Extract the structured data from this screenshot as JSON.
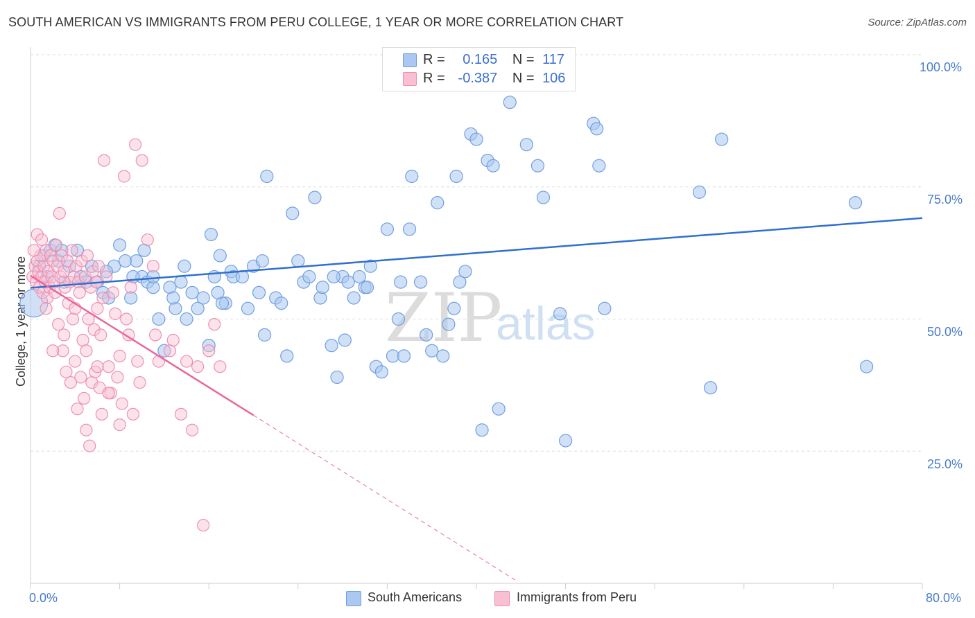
{
  "header": {
    "title": "SOUTH AMERICAN VS IMMIGRANTS FROM PERU COLLEGE, 1 YEAR OR MORE CORRELATION CHART",
    "source": "Source: ZipAtlas.com"
  },
  "colors": {
    "blue_fill": "#aac8f0",
    "blue_stroke": "#6f9fe0",
    "blue_line": "#2f6fd0",
    "pink_fill": "#f8c0d2",
    "pink_stroke": "#ee8fb0",
    "pink_line": "#e8679a",
    "tick_color": "#4a7cc9"
  },
  "legend": {
    "r_label": "R =",
    "n_label": "N =",
    "blue_r": "0.165",
    "blue_n": "117",
    "pink_r": "-0.387",
    "pink_n": "106"
  },
  "chart_data": {
    "type": "scatter",
    "title": "SOUTH AMERICAN VS IMMIGRANTS FROM PERU COLLEGE, 1 YEAR OR MORE CORRELATION CHART",
    "ylabel": "College, 1 year or more",
    "xlim": [
      0,
      80
    ],
    "ylim": [
      0,
      105
    ],
    "x_tick_labels": [
      "0.0%",
      "80.0%"
    ],
    "y_tick_labels": [
      "100.0%",
      "75.0%",
      "50.0%",
      "25.0%"
    ],
    "y_ticks": [
      100,
      75,
      50,
      25
    ],
    "watermark": "ZIPatlas",
    "series": [
      {
        "name": "South Americans",
        "r": 0.165,
        "n": 117,
        "trend": {
          "x": [
            0,
            80
          ],
          "y": [
            55.9,
            69.1
          ]
        },
        "points": [
          [
            0.3,
            53
          ],
          [
            1.2,
            62
          ],
          [
            1.8,
            63
          ],
          [
            2.5,
            61
          ],
          [
            2.2,
            64
          ],
          [
            3,
            57
          ],
          [
            3.5,
            60
          ],
          [
            2.8,
            63
          ],
          [
            4.2,
            63
          ],
          [
            4.5,
            58
          ],
          [
            5,
            57
          ],
          [
            5.5,
            60
          ],
          [
            6,
            57
          ],
          [
            6.5,
            55
          ],
          [
            7,
            54
          ],
          [
            7.5,
            60
          ],
          [
            8,
            64
          ],
          [
            8.5,
            61
          ],
          [
            9,
            54
          ],
          [
            9.5,
            61
          ],
          [
            10,
            58
          ],
          [
            10.5,
            57
          ],
          [
            10.2,
            63
          ],
          [
            11,
            56
          ],
          [
            11.5,
            50
          ],
          [
            11,
            58
          ],
          [
            12,
            44
          ],
          [
            12.5,
            56
          ],
          [
            13,
            52
          ],
          [
            13.5,
            57
          ],
          [
            14,
            50
          ],
          [
            14.5,
            55
          ],
          [
            15,
            52
          ],
          [
            15.5,
            54
          ],
          [
            16,
            45
          ],
          [
            16.2,
            66
          ],
          [
            16.5,
            58
          ],
          [
            17,
            62
          ],
          [
            17.5,
            53
          ],
          [
            17.2,
            53
          ],
          [
            18,
            59
          ],
          [
            18.2,
            58
          ],
          [
            19,
            58
          ],
          [
            19.5,
            52
          ],
          [
            20,
            60
          ],
          [
            20.5,
            55
          ],
          [
            21,
            47
          ],
          [
            21.2,
            77
          ],
          [
            22,
            54
          ],
          [
            22.5,
            53
          ],
          [
            23,
            43
          ],
          [
            23.5,
            70
          ],
          [
            24,
            61
          ],
          [
            24.5,
            57
          ],
          [
            25,
            58
          ],
          [
            25.5,
            73
          ],
          [
            26,
            54
          ],
          [
            26.2,
            56
          ],
          [
            27,
            45
          ],
          [
            27.5,
            39
          ],
          [
            28,
            58
          ],
          [
            28.2,
            46
          ],
          [
            28.5,
            57
          ],
          [
            29,
            54
          ],
          [
            29.5,
            58
          ],
          [
            30,
            56
          ],
          [
            30.5,
            60
          ],
          [
            31,
            41
          ],
          [
            31.5,
            40
          ],
          [
            32,
            67
          ],
          [
            32.5,
            43
          ],
          [
            33,
            50
          ],
          [
            33.5,
            43
          ],
          [
            34,
            67
          ],
          [
            34.2,
            77
          ],
          [
            35,
            57
          ],
          [
            35.5,
            47
          ],
          [
            36,
            44
          ],
          [
            36.5,
            72
          ],
          [
            37,
            43
          ],
          [
            37.5,
            49
          ],
          [
            38,
            52
          ],
          [
            38.2,
            77
          ],
          [
            38.5,
            57
          ],
          [
            39,
            59
          ],
          [
            39.5,
            85
          ],
          [
            40,
            84
          ],
          [
            40.5,
            29
          ],
          [
            41,
            80
          ],
          [
            41.5,
            79
          ],
          [
            42,
            33
          ],
          [
            43,
            91
          ],
          [
            44.5,
            83
          ],
          [
            45.5,
            79
          ],
          [
            46,
            73
          ],
          [
            47.5,
            51
          ],
          [
            48,
            27
          ],
          [
            50.5,
            87
          ],
          [
            50.8,
            86
          ],
          [
            51,
            79
          ],
          [
            51.5,
            52
          ],
          [
            60,
            74
          ],
          [
            61,
            37
          ],
          [
            62,
            84
          ],
          [
            74,
            72
          ],
          [
            75,
            41
          ],
          [
            0.8,
            60
          ],
          [
            1.5,
            58
          ],
          [
            6.8,
            59
          ],
          [
            9.2,
            58
          ],
          [
            13.8,
            60
          ],
          [
            20.8,
            61
          ],
          [
            33.2,
            57
          ],
          [
            30.2,
            56
          ],
          [
            27.2,
            58
          ],
          [
            16.8,
            55
          ],
          [
            12.8,
            54
          ]
        ]
      },
      {
        "name": "Immigrants from Peru",
        "r": -0.387,
        "n": 106,
        "trend": {
          "x": [
            0,
            20
          ],
          "y": [
            58.2,
            31.8
          ]
        },
        "trend_dashed": {
          "x": [
            20,
            43.5
          ],
          "y": [
            31.8,
            0.6
          ]
        },
        "points": [
          [
            0.2,
            58
          ],
          [
            0.4,
            60
          ],
          [
            0.5,
            57
          ],
          [
            0.6,
            61
          ],
          [
            0.7,
            59
          ],
          [
            0.8,
            56
          ],
          [
            0.9,
            62
          ],
          [
            1,
            58
          ],
          [
            1.1,
            55
          ],
          [
            1.2,
            60
          ],
          [
            1.3,
            57
          ],
          [
            1.4,
            63
          ],
          [
            1.5,
            54
          ],
          [
            1.6,
            59
          ],
          [
            1.7,
            56
          ],
          [
            1.8,
            62
          ],
          [
            1.9,
            58
          ],
          [
            2,
            61
          ],
          [
            2.1,
            57
          ],
          [
            2.2,
            55
          ],
          [
            2.3,
            64
          ],
          [
            2.4,
            60
          ],
          [
            2.5,
            49
          ],
          [
            2.6,
            70
          ],
          [
            2.7,
            58
          ],
          [
            2.8,
            62
          ],
          [
            2.9,
            44
          ],
          [
            3,
            59
          ],
          [
            3.1,
            56
          ],
          [
            3.2,
            40
          ],
          [
            3.3,
            61
          ],
          [
            3.4,
            53
          ],
          [
            3.5,
            57
          ],
          [
            3.6,
            38
          ],
          [
            3.7,
            63
          ],
          [
            3.8,
            50
          ],
          [
            3.9,
            58
          ],
          [
            4,
            42
          ],
          [
            4.1,
            60
          ],
          [
            4.2,
            33
          ],
          [
            4.3,
            57
          ],
          [
            4.4,
            55
          ],
          [
            4.5,
            39
          ],
          [
            4.6,
            61
          ],
          [
            4.7,
            46
          ],
          [
            4.8,
            35
          ],
          [
            4.9,
            58
          ],
          [
            5,
            44
          ],
          [
            5.1,
            62
          ],
          [
            5.2,
            50
          ],
          [
            5.3,
            26
          ],
          [
            5.4,
            56
          ],
          [
            5.5,
            38
          ],
          [
            5.6,
            59
          ],
          [
            5.7,
            48
          ],
          [
            5.8,
            40
          ],
          [
            5.9,
            57
          ],
          [
            6,
            52
          ],
          [
            6.1,
            60
          ],
          [
            6.2,
            37
          ],
          [
            6.3,
            47
          ],
          [
            6.4,
            32
          ],
          [
            6.5,
            54
          ],
          [
            6.6,
            80
          ],
          [
            6.8,
            58
          ],
          [
            7,
            41
          ],
          [
            7.2,
            36
          ],
          [
            7.4,
            55
          ],
          [
            7.6,
            51
          ],
          [
            7.8,
            39
          ],
          [
            8,
            43
          ],
          [
            8.2,
            34
          ],
          [
            8.4,
            77
          ],
          [
            8.6,
            50
          ],
          [
            8.8,
            47
          ],
          [
            9,
            56
          ],
          [
            9.2,
            32
          ],
          [
            9.4,
            83
          ],
          [
            9.6,
            42
          ],
          [
            9.8,
            38
          ],
          [
            10,
            80
          ],
          [
            10.5,
            65
          ],
          [
            11,
            60
          ],
          [
            11.2,
            47
          ],
          [
            12.5,
            44
          ],
          [
            12.8,
            46
          ],
          [
            13.5,
            32
          ],
          [
            14,
            42
          ],
          [
            14.5,
            29
          ],
          [
            15,
            41
          ],
          [
            15.5,
            11
          ],
          [
            16,
            44
          ],
          [
            0.3,
            63
          ],
          [
            0.6,
            66
          ],
          [
            1.0,
            65
          ],
          [
            1.4,
            52
          ],
          [
            2.0,
            44
          ],
          [
            3.0,
            47
          ],
          [
            4.0,
            52
          ],
          [
            5.0,
            29
          ],
          [
            6.0,
            41
          ],
          [
            7.0,
            36
          ],
          [
            8.0,
            30
          ],
          [
            11.5,
            42
          ],
          [
            16.5,
            49
          ],
          [
            17.0,
            41
          ]
        ]
      }
    ]
  },
  "bottom_legend": {
    "blue_label": "South Americans",
    "pink_label": "Immigrants from Peru"
  }
}
